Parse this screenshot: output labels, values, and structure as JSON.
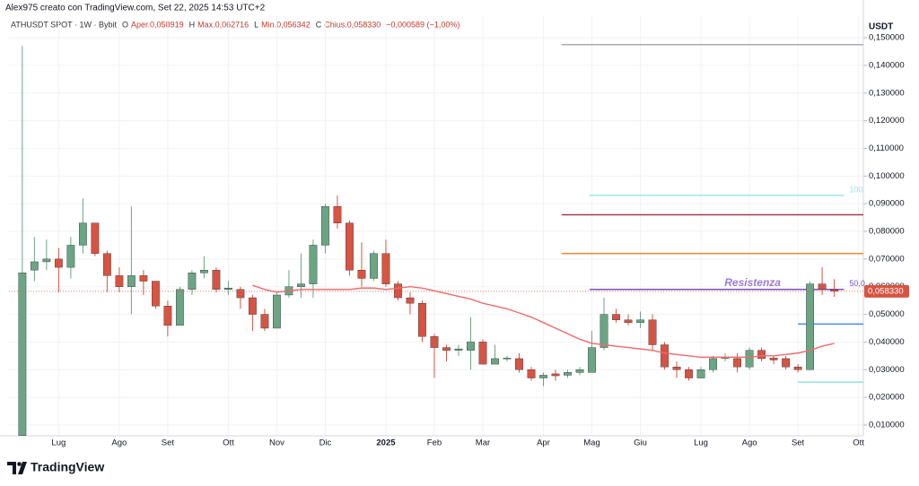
{
  "header": {
    "credit": "Alex975 creato con TradingView.com, Set 22, 2025 14:53 UTC+2",
    "symbol": "ATHUSDT SPOT · 1W · Bybit",
    "ohlc": [
      {
        "key": "O",
        "text": "Aper.0,058919"
      },
      {
        "key": "H",
        "text": "Max.0,062716"
      },
      {
        "key": "L",
        "text": "Min.0,056342"
      },
      {
        "key": "C",
        "text": "Chius.0,058330"
      }
    ],
    "change": "−0,000589 (−1,00%)"
  },
  "footer": {
    "brand": "TradingView"
  },
  "chart_data": {
    "type": "candlestick",
    "y_axis_title": "USDT",
    "up_color": "#6ba583",
    "down_color": "#d75442",
    "xlim": [
      -1.1,
      69.4
    ],
    "ylim": [
      0.0061,
      0.1578
    ],
    "grid": true,
    "xticks": [
      {
        "value": 3,
        "label": "Lug"
      },
      {
        "value": 8,
        "label": "Ago"
      },
      {
        "value": 12,
        "label": "Set"
      },
      {
        "value": 17,
        "label": "Ott"
      },
      {
        "value": 21,
        "label": "Nov"
      },
      {
        "value": 25,
        "label": "Dic"
      },
      {
        "value": 30,
        "label": "2025"
      },
      {
        "value": 34,
        "label": "Feb"
      },
      {
        "value": 38,
        "label": "Mar"
      },
      {
        "value": 43,
        "label": "Apr"
      },
      {
        "value": 47,
        "label": "Mag"
      },
      {
        "value": 51,
        "label": "Giu"
      },
      {
        "value": 56,
        "label": "Lug"
      },
      {
        "value": 60,
        "label": "Ago"
      },
      {
        "value": 64,
        "label": "Set"
      },
      {
        "value": 69,
        "label": "Ott"
      }
    ],
    "yticks": [
      {
        "value": 0.01,
        "label": "0,010000"
      },
      {
        "value": 0.02,
        "label": "0,020000"
      },
      {
        "value": 0.03,
        "label": "0,030000"
      },
      {
        "value": 0.04,
        "label": "0,040000"
      },
      {
        "value": 0.05,
        "label": "0,050000"
      },
      {
        "value": 0.06,
        "label": "0,060000"
      },
      {
        "value": 0.07,
        "label": "0,070000"
      },
      {
        "value": 0.08,
        "label": "0,080000"
      },
      {
        "value": 0.09,
        "label": "0,090000"
      },
      {
        "value": 0.1,
        "label": "0,100000"
      },
      {
        "value": 0.11,
        "label": "0,110000"
      },
      {
        "value": 0.12,
        "label": "0,120000"
      },
      {
        "value": 0.13,
        "label": "0,130000"
      },
      {
        "value": 0.14,
        "label": "0,140000"
      },
      {
        "value": 0.15,
        "label": "0,150000"
      }
    ],
    "open": [
      0.0062,
      0.066,
      0.069,
      0.07,
      0.067,
      0.075,
      0.083,
      0.072,
      0.064,
      0.06,
      0.064,
      0.062,
      0.053,
      0.046,
      0.059,
      0.065,
      0.066,
      0.059,
      0.059,
      0.056,
      0.05,
      0.045,
      0.057,
      0.06,
      0.061,
      0.075,
      0.089,
      0.083,
      0.066,
      0.063,
      0.072,
      0.061,
      0.056,
      0.054,
      0.042,
      0.038,
      0.037,
      0.037,
      0.04,
      0.032,
      0.034,
      0.034,
      0.03,
      0.027,
      0.0285,
      0.028,
      0.029,
      0.029,
      0.038,
      0.05,
      0.048,
      0.047,
      0.048,
      0.039,
      0.031,
      0.03,
      0.027,
      0.03,
      0.034,
      0.034,
      0.031,
      0.037,
      0.0342,
      0.034,
      0.031,
      0.03,
      0.061,
      0.058919
    ],
    "high": [
      0.147,
      0.078,
      0.077,
      0.074,
      0.078,
      0.092,
      0.083,
      0.073,
      0.067,
      0.089,
      0.066,
      0.062,
      0.055,
      0.06,
      0.066,
      0.071,
      0.067,
      0.062,
      0.06,
      0.057,
      0.052,
      0.058,
      0.066,
      0.072,
      0.077,
      0.09,
      0.093,
      0.084,
      0.076,
      0.073,
      0.077,
      0.062,
      0.058,
      0.055,
      0.043,
      0.039,
      0.039,
      0.049,
      0.041,
      0.039,
      0.035,
      0.036,
      0.031,
      0.029,
      0.03,
      0.03,
      0.031,
      0.044,
      0.056,
      0.052,
      0.05,
      0.051,
      0.05,
      0.04,
      0.033,
      0.031,
      0.031,
      0.035,
      0.036,
      0.036,
      0.038,
      0.038,
      0.035,
      0.035,
      0.032,
      0.062,
      0.067,
      0.062716
    ],
    "low": [
      0.0061,
      0.062,
      0.066,
      0.058,
      0.063,
      0.072,
      0.071,
      0.058,
      0.058,
      0.05,
      0.057,
      0.052,
      0.042,
      0.046,
      0.057,
      0.063,
      0.058,
      0.057,
      0.052,
      0.044,
      0.044,
      0.045,
      0.056,
      0.056,
      0.056,
      0.072,
      0.081,
      0.064,
      0.06,
      0.062,
      0.06,
      0.055,
      0.05,
      0.04,
      0.027,
      0.033,
      0.035,
      0.03,
      0.032,
      0.032,
      0.033,
      0.029,
      0.026,
      0.024,
      0.026,
      0.027,
      0.028,
      0.029,
      0.037,
      0.047,
      0.046,
      0.045,
      0.037,
      0.03,
      0.027,
      0.026,
      0.027,
      0.029,
      0.033,
      0.029,
      0.03,
      0.033,
      0.032,
      0.03,
      0.029,
      0.03,
      0.057,
      0.056342
    ],
    "close": [
      0.065,
      0.069,
      0.07,
      0.067,
      0.075,
      0.083,
      0.072,
      0.064,
      0.06,
      0.064,
      0.062,
      0.053,
      0.046,
      0.059,
      0.065,
      0.066,
      0.059,
      0.0595,
      0.056,
      0.05,
      0.045,
      0.057,
      0.06,
      0.061,
      0.075,
      0.089,
      0.083,
      0.066,
      0.063,
      0.072,
      0.061,
      0.056,
      0.054,
      0.042,
      0.038,
      0.037,
      0.0375,
      0.04,
      0.032,
      0.034,
      0.0342,
      0.03,
      0.027,
      0.028,
      0.0278,
      0.029,
      0.03,
      0.038,
      0.05,
      0.048,
      0.047,
      0.048,
      0.039,
      0.031,
      0.03,
      0.027,
      0.03,
      0.034,
      0.0345,
      0.031,
      0.037,
      0.034,
      0.0335,
      0.031,
      0.03,
      0.061,
      0.059,
      0.05833
    ],
    "moving_average": {
      "color": "#f06a6a",
      "values": [
        null,
        null,
        null,
        null,
        null,
        null,
        null,
        null,
        null,
        null,
        null,
        null,
        null,
        null,
        null,
        null,
        null,
        null,
        null,
        0.0605,
        0.059,
        0.058,
        0.0585,
        0.059,
        0.059,
        0.059,
        0.059,
        0.059,
        0.0595,
        0.0595,
        0.059,
        0.0595,
        0.06,
        0.0595,
        0.0585,
        0.0575,
        0.0565,
        0.0555,
        0.054,
        0.053,
        0.052,
        0.0505,
        0.049,
        0.047,
        0.045,
        0.043,
        0.041,
        0.0395,
        0.039,
        0.0385,
        0.038,
        0.0375,
        0.037,
        0.036,
        0.0355,
        0.035,
        0.0345,
        0.0345,
        0.0345,
        0.0345,
        0.0345,
        0.035,
        0.035,
        0.0355,
        0.036,
        0.037,
        0.0385,
        0.0395
      ]
    },
    "levels": [
      {
        "value": 0.1475,
        "color": "#b0a8b0",
        "start": 44.5
      },
      {
        "value": 0.093,
        "color": "#9fe3ea",
        "start": 46.8,
        "end": 67.8,
        "end_label": "100"
      },
      {
        "value": 0.086,
        "color": "#a33c50",
        "start": 44.5
      },
      {
        "value": 0.072,
        "color": "#f08a2c",
        "start": 44.5
      },
      {
        "value": 0.059,
        "color": "#7c4fc4",
        "start": 46.8,
        "end": 67.8,
        "label": "Resistenza",
        "end_label": "50,0"
      },
      {
        "value": 0.0465,
        "color": "#4a8be8",
        "start": 64
      },
      {
        "value": 0.0255,
        "color": "#8fe0e0",
        "start": 64
      }
    ],
    "last_price": {
      "value": 0.05833,
      "label": "0,058330"
    }
  }
}
